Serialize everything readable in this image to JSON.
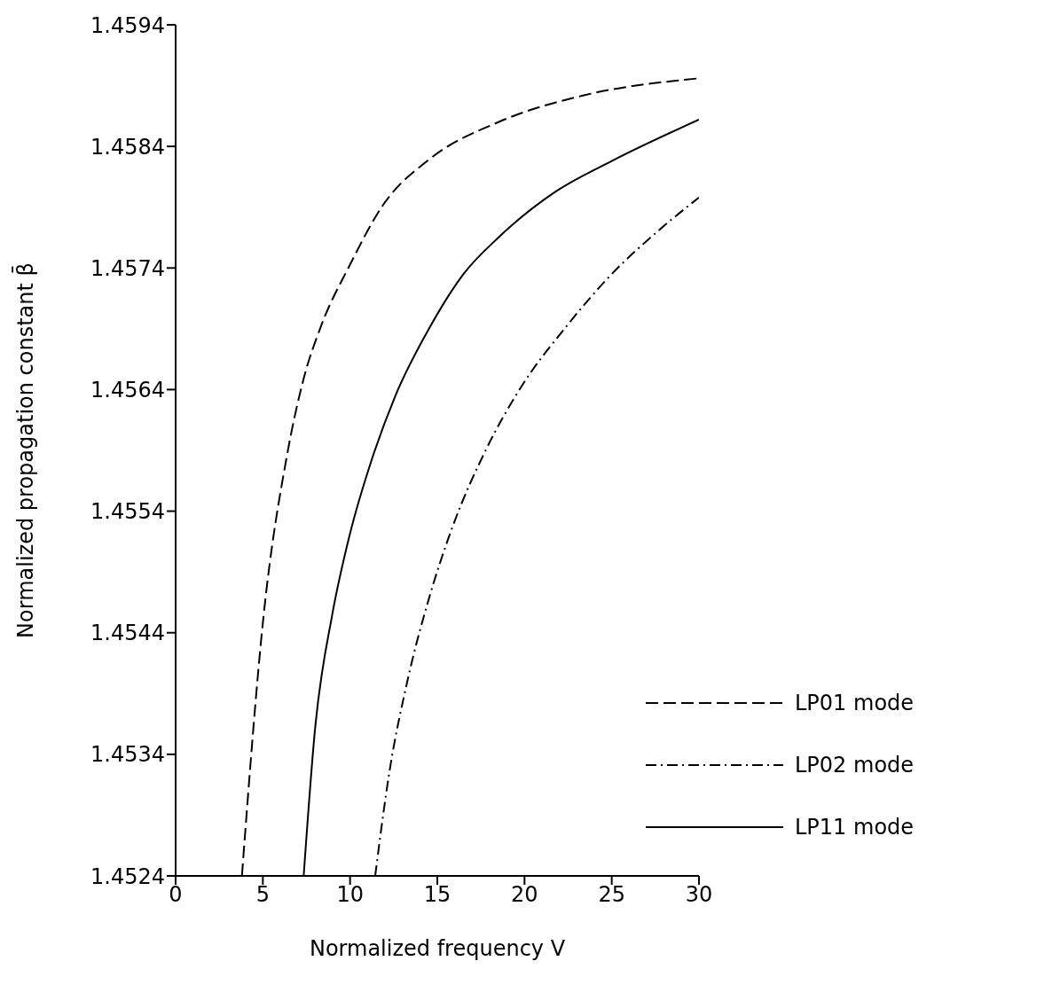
{
  "chart_data": {
    "type": "line",
    "xlabel": "Normalized frequency  V",
    "ylabel": "Normalized propagation constant β̄",
    "xlim": [
      0,
      30
    ],
    "xticks": [
      0,
      5,
      10,
      15,
      20,
      25,
      30
    ],
    "ylim": [
      1.4524,
      1.4594
    ],
    "yticks": [
      1.4524,
      1.4534,
      1.4544,
      1.4554,
      1.4564,
      1.4574,
      1.4584,
      1.4594
    ],
    "grid": false,
    "legend": "bottom right",
    "marker": "none",
    "series": [
      {
        "name": "LP01 mode",
        "color": "#000000",
        "line_style": "dashed",
        "x": [
          3.8,
          5.05,
          6.36,
          7.34,
          8.33,
          9.97,
          11.9,
          14.6,
          18.5,
          23.4,
          30
        ],
        "values": [
          1.4524,
          1.45455,
          1.45584,
          1.45649,
          1.45692,
          1.45742,
          1.45792,
          1.4583,
          1.4586,
          1.45882,
          1.45896
        ]
      },
      {
        "name": "LP02 mode",
        "color": "#000000",
        "line_style": "dashdot",
        "x": [
          11.44,
          12.26,
          13.25,
          14.56,
          15.87,
          17.84,
          19.8,
          22.4,
          25,
          27.7,
          30
        ],
        "values": [
          1.4524,
          1.45326,
          1.45398,
          1.4547,
          1.45527,
          1.45592,
          1.45642,
          1.45692,
          1.45735,
          1.45771,
          1.45798
        ]
      },
      {
        "name": "LP11 mode",
        "color": "#000000",
        "line_style": "solid",
        "x": [
          7.34,
          8.0,
          8.98,
          9.97,
          11.28,
          12.6,
          14.6,
          16.5,
          18.5,
          21.8,
          25,
          30
        ],
        "values": [
          1.4524,
          1.45362,
          1.45455,
          1.4552,
          1.45584,
          1.45635,
          1.45692,
          1.45735,
          1.45765,
          1.45803,
          1.45828,
          1.45862
        ]
      }
    ]
  }
}
